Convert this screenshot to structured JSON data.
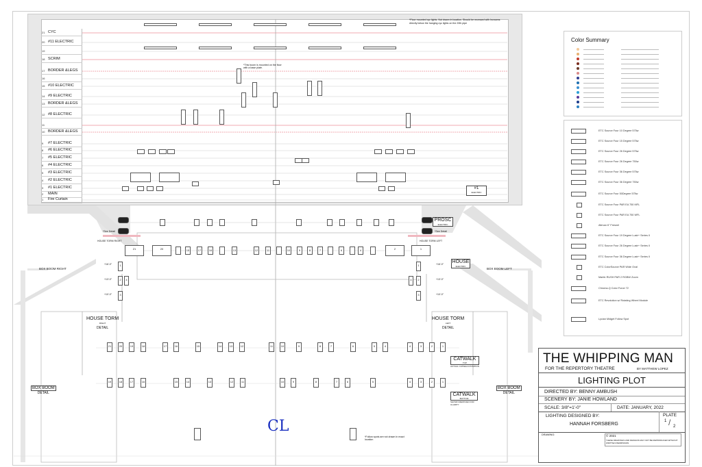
{
  "linesets": [
    {
      "num": "21",
      "label": "CYC"
    },
    {
      "num": "20",
      "label": "#11 ELECTRIC"
    },
    {
      "num": "19",
      "label": ""
    },
    {
      "num": "18",
      "label": "SCRIM"
    },
    {
      "num": "17",
      "label": "BORDER &LEGS"
    },
    {
      "num": "16",
      "label": ""
    },
    {
      "num": "15",
      "label": "#10 ELECTRIC"
    },
    {
      "num": "14",
      "label": "#9 ELECTRIC"
    },
    {
      "num": "13",
      "label": "BORDER &LEGS"
    },
    {
      "num": "12",
      "label": "#8 ELECTRIC"
    },
    {
      "num": "11",
      "label": ""
    },
    {
      "num": "10",
      "label": "BORDER &LEGS"
    },
    {
      "num": "9",
      "label": "#7 ELECTRIC"
    },
    {
      "num": "8",
      "label": "#6 ELECTRIC"
    },
    {
      "num": "7",
      "label": "#5 ELECTRIC"
    },
    {
      "num": "6",
      "label": "#4 ELECTRIC"
    },
    {
      "num": "5",
      "label": "#3 ELECTRIC"
    },
    {
      "num": "4",
      "label": "#2 ELECTRIC"
    },
    {
      "num": "3",
      "label": "#1 ELECTRIC"
    },
    {
      "num": "2",
      "label": "MAIN"
    },
    {
      "num": "1",
      "label": "Fire Curtain"
    }
  ],
  "notes": {
    "cyc": "*Floor mounted cyc lights. Not drawn in location. Should be recessed with Incrowns directly below the hanging cyc lights on the 20th pipe",
    "boom": "*This boom is mounted on the floor with a base plate.",
    "follow": "*Follow spots are not drawn in exact location",
    "side_l": "*See Detail",
    "side_r": "*See Detail"
  },
  "positions": {
    "first_electric": {
      "title": "#1",
      "sub": "ELECTRIC"
    },
    "prosc": {
      "title": "PROSC",
      "sub": "ELECTRIC"
    },
    "house": {
      "title": "HOUSE",
      "sub": "ELECTRIC"
    },
    "house_torm_right": {
      "title": "HOUSE TORM",
      "sub": "RIGHT",
      "detail": "DETAIL"
    },
    "house_torm_left": {
      "title": "HOUSE TORM",
      "sub": "LEFT",
      "detail": "DETAIL"
    },
    "catwalk_top": {
      "title": "CATWALK",
      "sub": "TOP",
      "note": "ACTUAL CATWALK POSITION"
    },
    "catwalk_bottom": {
      "title": "CATWALK",
      "sub": "BOTTOM",
      "note": "SHOWN REMOVED FOR CLARITY"
    },
    "box_boom_right": {
      "title": "BOX BOOM",
      "sub": "RIGHT",
      "detail": "DETAIL",
      "area": "BOX BOOM RIGHT"
    },
    "box_boom_left": {
      "title": "BOX BOOM",
      "sub": "LEFT",
      "detail": "DETAIL",
      "area": "BOX BOOM LEFT"
    },
    "torm_right_label": "HOUSE TORM RIGHT",
    "torm_left_label": "HOUSE TORM LEFT",
    "heights": [
      "+16'-0\"",
      "+13'-0\"",
      "+10'-0\""
    ]
  },
  "centerline": "CL",
  "channels": {
    "house_row": [
      "21",
      "20",
      "",
      "15",
      "17",
      "16",
      "",
      "13",
      "12",
      "11",
      "",
      "10",
      "9",
      "8",
      "7",
      "",
      "6",
      "",
      "4",
      "",
      "2",
      "1"
    ],
    "catwalk_top": [
      "21",
      "20",
      "19",
      "18",
      "17",
      "16",
      "15",
      "14",
      "13",
      "12",
      "11",
      "10",
      "9",
      "8",
      "7",
      "6",
      "5",
      "4",
      "4",
      "3",
      "2",
      "1"
    ],
    "catwalk_bottom": [
      "19",
      "18",
      "17",
      "16",
      "15",
      "14",
      "13",
      "12",
      "11",
      "10",
      "9",
      "8",
      "7",
      "6",
      "5",
      "4",
      "3",
      "2",
      "1"
    ],
    "torm_right": [
      "1",
      "2",
      "4",
      "3"
    ],
    "torm_left": [
      "1",
      "4",
      "2",
      "3"
    ]
  },
  "color_summary": {
    "title": "Color Summary",
    "swatches": [
      "#f3c89a",
      "#e8b070",
      "#c0392b",
      "#7b2d1e",
      "#6b3a2a",
      "#d98a8a",
      "#2f3c8f",
      "#1f6fb0",
      "#3a8fd0",
      "#2a9fd8",
      "#5a3a9a",
      "#1a3a8a",
      "#2a7fc0"
    ]
  },
  "legend": [
    "ETC Source Four 10 Degree 575w",
    "ETC Source Four 15 Degree 575w",
    "ETC Source Four 26 Degree 575w",
    "ETC Source Four 26 Degree 750w",
    "ETC Source Four 36 Degree 575w",
    "ETC Source Four 36 Degree 750w",
    "ETC Source Four 50Degree 575w",
    "ETC Source Four PAR EA 750 MFL",
    "ETC Source Four PAR EA 750 WFL",
    "Altman 6\" Fresnel",
    "ETC Source Four 19 Degree Lustr+ Series II",
    "ETC Source Four 26 Degree Lustr+ Series II",
    "ETC Source Four 36 Degree Lustr+ Series II",
    "ETC ColorSource PAR Wide Oval",
    "Martin RUSH PAR 2 RGBW Zoom",
    "Chroma-Q Color Force 72",
    "ETC Revolution w/ Rotating Wheel Module",
    "Lycian Midget Follow Spot"
  ],
  "title_block": {
    "show": "THE WHIPPING MAN",
    "theatre": "FOR THE REPERTORY THEATRE",
    "author": "BY MATTHEW LOPEZ",
    "plot": "LIGHTING PLOT",
    "director": "DIRECTED BY: BENNY AMBUSH",
    "scenery": "SCENERY BY: JANIE HOWLAND",
    "scale": "SCALE: 3/8\"=1'-0\"",
    "date": "DATE: JANUARY, 2022",
    "designed_label": "LIGHTING DESIGNED BY:",
    "designer": "HANNAH FORSBERG",
    "plate_label": "PLATE",
    "plate_num": "1",
    "plate_total": "2",
    "drawing_label": "DRAWING:",
    "copyright": "© 2021",
    "rights": "THESE DRAWINGS AND DESIGNS MAY NOT BE REPRODUCED WITHOUT WRITTEN PERMISSION"
  }
}
